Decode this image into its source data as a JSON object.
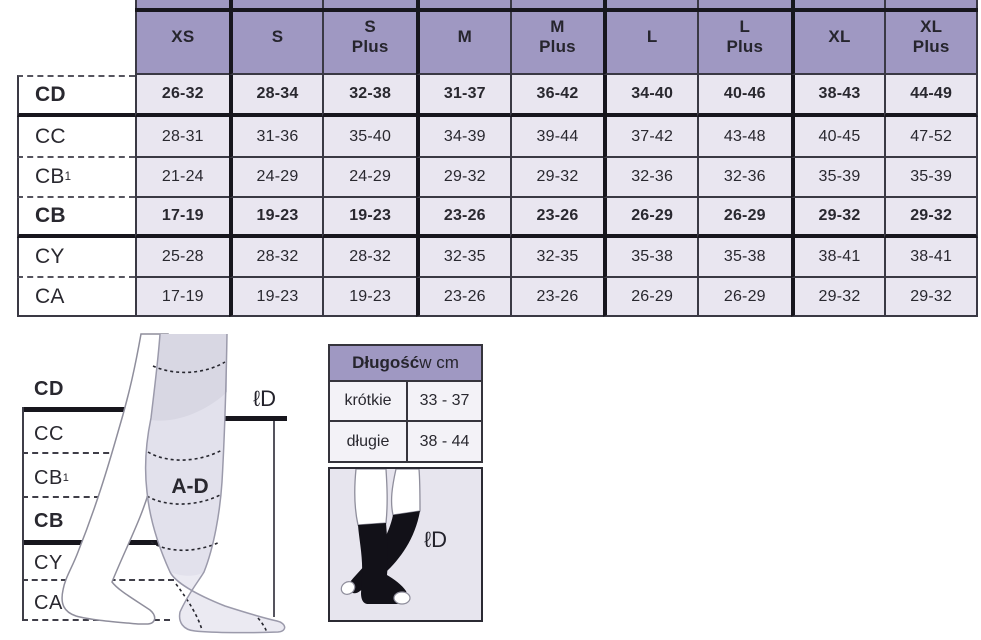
{
  "size_table": {
    "columns": [
      "XS",
      "S",
      "S Plus",
      "M",
      "M Plus",
      "L",
      "L Plus",
      "XL",
      "XL Plus"
    ],
    "rows": [
      {
        "label": "CD",
        "bold": true,
        "values": [
          "26-32",
          "28-34",
          "32-38",
          "31-37",
          "36-42",
          "34-40",
          "40-46",
          "38-43",
          "44-49"
        ]
      },
      {
        "label": "CC",
        "bold": false,
        "values": [
          "28-31",
          "31-36",
          "35-40",
          "34-39",
          "39-44",
          "37-42",
          "43-48",
          "40-45",
          "47-52"
        ]
      },
      {
        "label": "CB",
        "sub": "1",
        "bold": false,
        "values": [
          "21-24",
          "24-29",
          "24-29",
          "29-32",
          "29-32",
          "32-36",
          "32-36",
          "35-39",
          "35-39"
        ]
      },
      {
        "label": "CB",
        "bold": true,
        "values": [
          "17-19",
          "19-23",
          "19-23",
          "23-26",
          "23-26",
          "26-29",
          "26-29",
          "29-32",
          "29-32"
        ]
      },
      {
        "label": "CY",
        "bold": false,
        "values": [
          "25-28",
          "28-32",
          "28-32",
          "32-35",
          "32-35",
          "35-38",
          "35-38",
          "38-41",
          "38-41"
        ]
      },
      {
        "label": "CA",
        "bold": false,
        "values": [
          "17-19",
          "19-23",
          "19-23",
          "23-26",
          "23-26",
          "26-29",
          "26-29",
          "29-32",
          "29-32"
        ]
      }
    ]
  },
  "diagram": {
    "labels": [
      {
        "text": "CD",
        "bold": true
      },
      {
        "text": "CC",
        "bold": false
      },
      {
        "text": "CB",
        "sub": "1",
        "bold": false
      },
      {
        "text": "CB",
        "bold": true
      },
      {
        "text": "CY",
        "bold": false
      },
      {
        "text": "CA",
        "bold": false
      }
    ],
    "ad_label": "A-D",
    "length_label": "ℓD"
  },
  "length_table": {
    "header_bold": "Długość",
    "header_rest": " w cm",
    "rows": [
      {
        "label": "krótkie",
        "value": "33 - 37"
      },
      {
        "label": "długie",
        "value": "38 - 44"
      }
    ]
  },
  "stocking_box": {
    "length_label": "ℓD"
  },
  "colors": {
    "header_purple": "#9f98c2",
    "cell_lavender": "#e9e6f0",
    "panel_lavender": "#e7e5ee",
    "row_light": "#f3f2f7",
    "thick_line": "#17161d",
    "thin_line": "#3a3944",
    "text": "#29282f"
  }
}
